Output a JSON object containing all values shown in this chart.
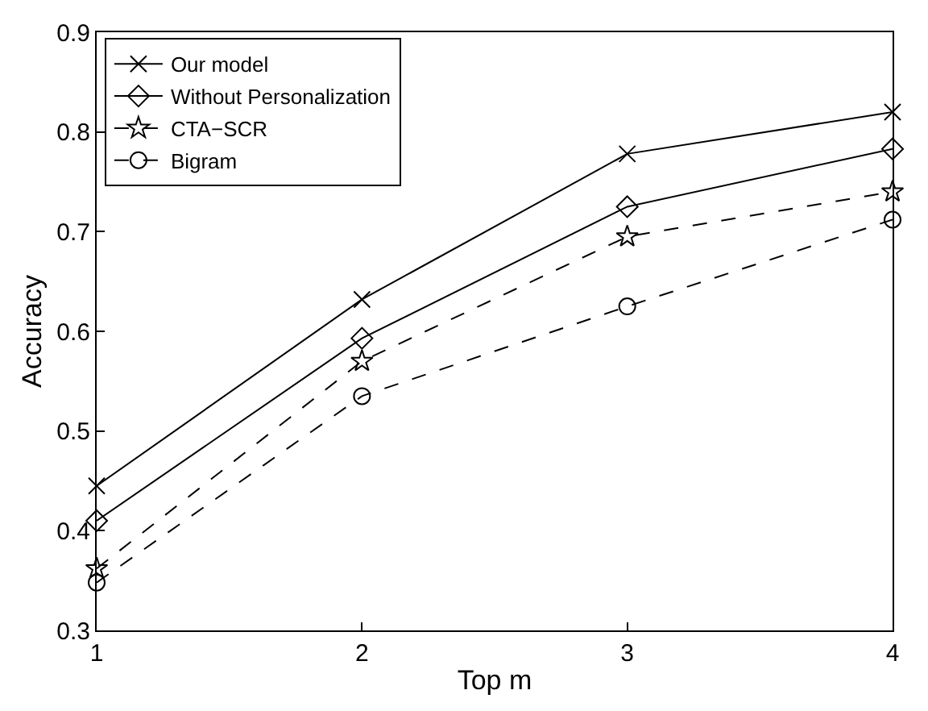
{
  "chart_data": {
    "type": "line",
    "xlabel": "Top m",
    "ylabel": "Accuracy",
    "x": [
      1,
      2,
      3,
      4
    ],
    "xlim": [
      1,
      4
    ],
    "xticks": [
      1,
      2,
      3,
      4
    ],
    "ylim": [
      0.3,
      0.9
    ],
    "yticks": [
      0.3,
      0.4,
      0.5,
      0.6,
      0.7,
      0.8,
      0.9
    ],
    "legend": "top left",
    "series": [
      {
        "name": "Our model",
        "color": "#000000",
        "marker": "cross",
        "line_style": "solid",
        "values": [
          0.445,
          0.632,
          0.778,
          0.82
        ]
      },
      {
        "name": "Without Personalization",
        "color": "#000000",
        "marker": "diamond",
        "line_style": "solid",
        "values": [
          0.41,
          0.593,
          0.725,
          0.783
        ]
      },
      {
        "name": "CTA−SCR",
        "color": "#000000",
        "marker": "star",
        "line_style": "dashed",
        "values": [
          0.362,
          0.57,
          0.695,
          0.74
        ]
      },
      {
        "name": "Bigram",
        "color": "#000000",
        "marker": "circle",
        "line_style": "dashed",
        "values": [
          0.348,
          0.535,
          0.625,
          0.712
        ]
      }
    ]
  }
}
